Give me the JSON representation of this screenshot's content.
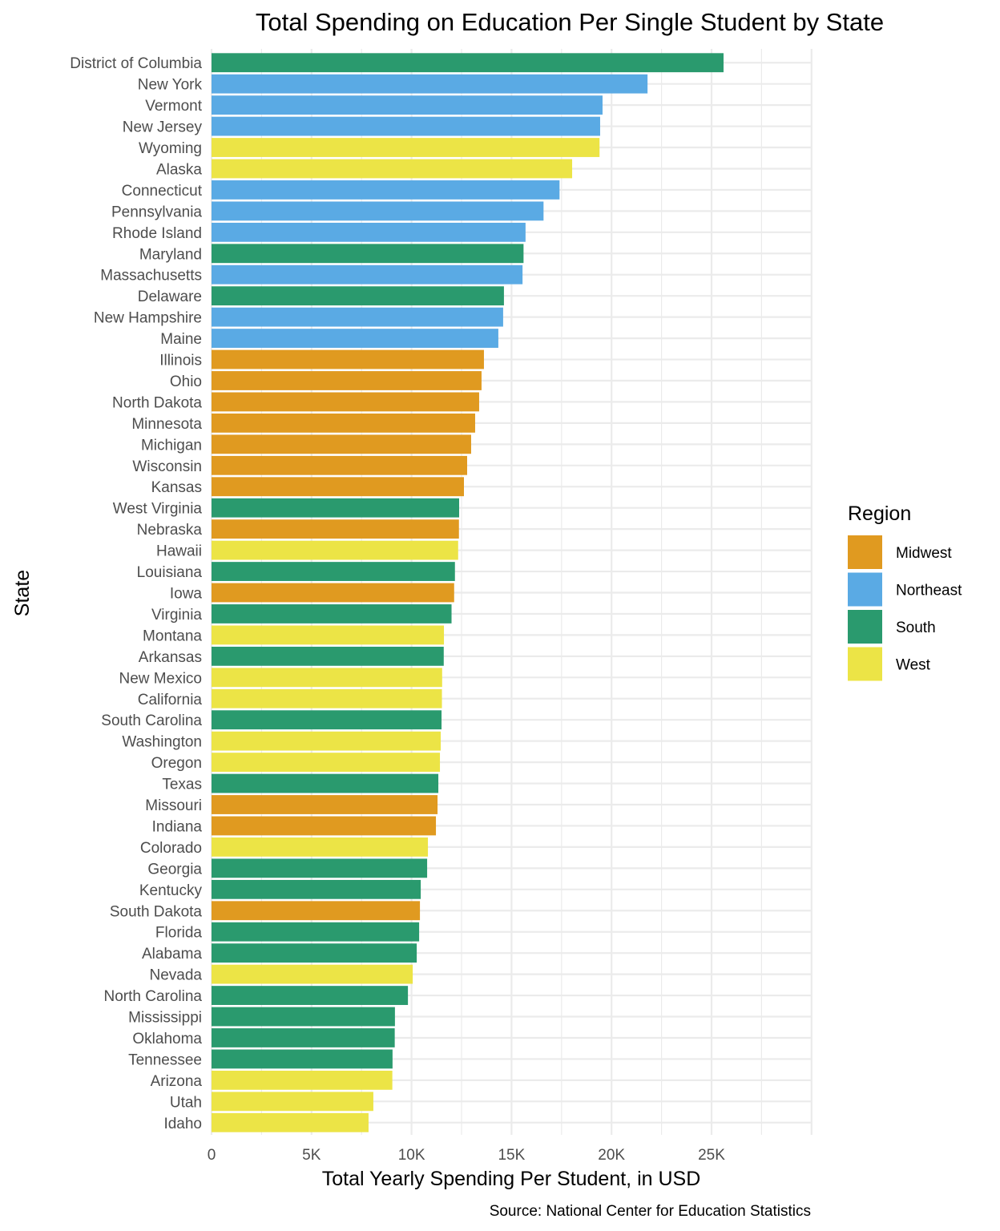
{
  "chart_data": {
    "type": "bar",
    "orientation": "horizontal",
    "title": "Total Spending on Education Per Single Student by State",
    "xlabel": "Total Yearly Spending Per Student, in USD",
    "ylabel": "State",
    "caption": "Source: National Center for Education Statistics",
    "xlim": [
      0,
      30000
    ],
    "x_ticks": [
      0,
      5000,
      10000,
      15000,
      20000,
      25000
    ],
    "x_tick_labels": [
      "0",
      "5K",
      "10K",
      "15K",
      "20K",
      "25K"
    ],
    "grid": true,
    "legend": {
      "title": "Region",
      "position": "right",
      "entries": [
        {
          "name": "Midwest",
          "color": "#E09A20"
        },
        {
          "name": "Northeast",
          "color": "#5AAAE4"
        },
        {
          "name": "South",
          "color": "#2A9A6E"
        },
        {
          "name": "West",
          "color": "#ECE446"
        }
      ]
    },
    "categories": [
      "District of Columbia",
      "New York",
      "Vermont",
      "New Jersey",
      "Wyoming",
      "Alaska",
      "Connecticut",
      "Pennsylvania",
      "Rhode Island",
      "Maryland",
      "Massachusetts",
      "Delaware",
      "New Hampshire",
      "Maine",
      "Illinois",
      "Ohio",
      "North Dakota",
      "Minnesota",
      "Michigan",
      "Wisconsin",
      "Kansas",
      "West Virginia",
      "Nebraska",
      "Hawaii",
      "Louisiana",
      "Iowa",
      "Virginia",
      "Montana",
      "Arkansas",
      "New Mexico",
      "California",
      "South Carolina",
      "Washington",
      "Oregon",
      "Texas",
      "Missouri",
      "Indiana",
      "Colorado",
      "Georgia",
      "Kentucky",
      "South Dakota",
      "Florida",
      "Alabama",
      "Nevada",
      "North Carolina",
      "Mississippi",
      "Oklahoma",
      "Tennessee",
      "Arizona",
      "Utah",
      "Idaho"
    ],
    "values": [
      25600,
      21800,
      19550,
      19430,
      19400,
      18030,
      17400,
      16600,
      15700,
      15600,
      15550,
      14620,
      14580,
      14340,
      13620,
      13500,
      13380,
      13180,
      12980,
      12780,
      12620,
      12380,
      12370,
      12330,
      12170,
      12130,
      12000,
      11620,
      11610,
      11530,
      11520,
      11500,
      11460,
      11420,
      11340,
      11300,
      11220,
      10820,
      10780,
      10460,
      10420,
      10380,
      10260,
      10060,
      9820,
      9170,
      9160,
      9050,
      9040,
      8090,
      7850
    ],
    "regions": [
      "South",
      "Northeast",
      "Northeast",
      "Northeast",
      "West",
      "West",
      "Northeast",
      "Northeast",
      "Northeast",
      "South",
      "Northeast",
      "South",
      "Northeast",
      "Northeast",
      "Midwest",
      "Midwest",
      "Midwest",
      "Midwest",
      "Midwest",
      "Midwest",
      "Midwest",
      "South",
      "Midwest",
      "West",
      "South",
      "Midwest",
      "South",
      "West",
      "South",
      "West",
      "West",
      "South",
      "West",
      "West",
      "South",
      "Midwest",
      "Midwest",
      "West",
      "South",
      "South",
      "Midwest",
      "South",
      "South",
      "West",
      "South",
      "South",
      "South",
      "South",
      "West",
      "West",
      "West"
    ]
  }
}
